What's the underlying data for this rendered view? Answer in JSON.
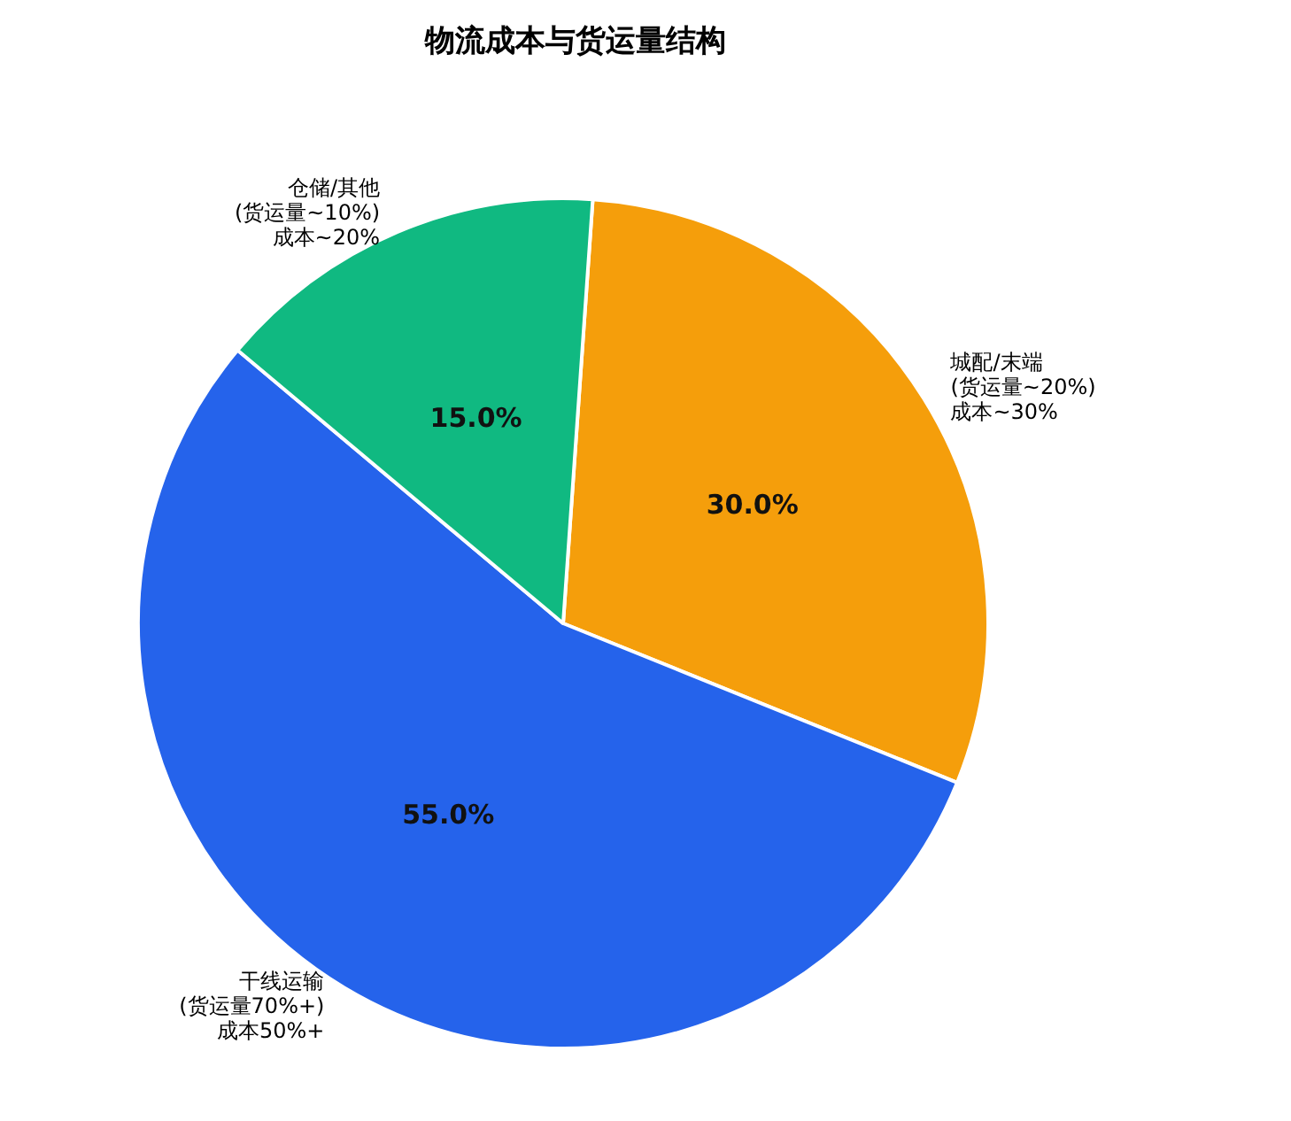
{
  "chart_data": {
    "type": "pie",
    "title": "物流成本与货运量结构",
    "categories": [
      "城配/末端\n(货运量~20%)\n成本~30%",
      "干线运输\n(货运量70%+)\n成本50%+",
      "仓储/其他\n(货运量~10%)\n成本~20%"
    ],
    "values": [
      30,
      55,
      15
    ],
    "colors": [
      "#f59e0b",
      "#2563eb",
      "#10b981"
    ],
    "value_labels": [
      "30.0%",
      "55.0%",
      "15.0%"
    ],
    "legend": false
  }
}
